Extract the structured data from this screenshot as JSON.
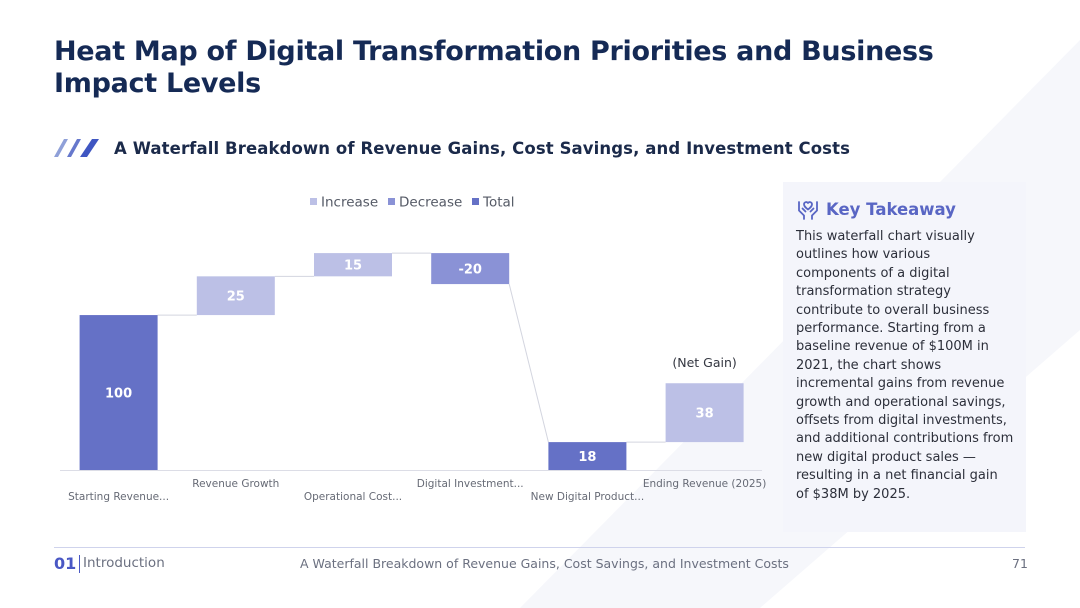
{
  "title": "Heat Map of Digital Transformation Priorities and Business Impact Levels",
  "subtitle": "A Waterfall Breakdown of Revenue Gains, Cost Savings, and Investment Costs",
  "colors": {
    "increase": "#bcc0e6",
    "decrease": "#8a92d6",
    "total": "#6571c6",
    "title": "#152a55",
    "accent": "#4a58c4"
  },
  "chart_data": {
    "type": "waterfall",
    "title": "",
    "legend": [
      "Increase",
      "Decrease",
      "Total"
    ],
    "legend_position": "top-center",
    "categories": [
      "Starting Revenue...",
      "Revenue Growth",
      "Operational Cost...",
      "Digital Investment...",
      "New Digital Product...",
      "Ending Revenue (2025)"
    ],
    "bars": [
      {
        "category": "Starting Revenue...",
        "kind": "total",
        "start": 0,
        "end": 100,
        "label": "100"
      },
      {
        "category": "Revenue Growth",
        "kind": "increase",
        "start": 100,
        "end": 125,
        "label": "25"
      },
      {
        "category": "Operational Cost...",
        "kind": "increase",
        "start": 125,
        "end": 140,
        "label": "15"
      },
      {
        "category": "Digital Investment...",
        "kind": "decrease",
        "start": 140,
        "end": 120,
        "label": "-20"
      },
      {
        "category": "New Digital Product...",
        "kind": "total",
        "start": 0,
        "end": 18,
        "label": "18"
      },
      {
        "category": "Ending Revenue (2025)",
        "kind": "increase",
        "start": 18,
        "end": 56,
        "label": "38"
      }
    ],
    "annotations": [
      {
        "category": "Ending Revenue (2025)",
        "text": "(Net Gain)"
      }
    ],
    "ylim": [
      0,
      142
    ]
  },
  "takeaway": {
    "title": "Key Takeaway",
    "text": "This waterfall chart visually outlines how various components of a digital transformation strategy contribute to overall business performance. Starting from a baseline revenue of $100M in 2021, the chart shows incremental gains from revenue growth and operational savings, offsets from digital investments, and additional contributions from new digital product sales — resulting in a net financial gain of $38M by 2025."
  },
  "footer": {
    "section_number": "01",
    "section_name": "Introduction",
    "center_text": "A Waterfall Breakdown of Revenue Gains, Cost Savings, and Investment Costs",
    "page_number": "71"
  }
}
